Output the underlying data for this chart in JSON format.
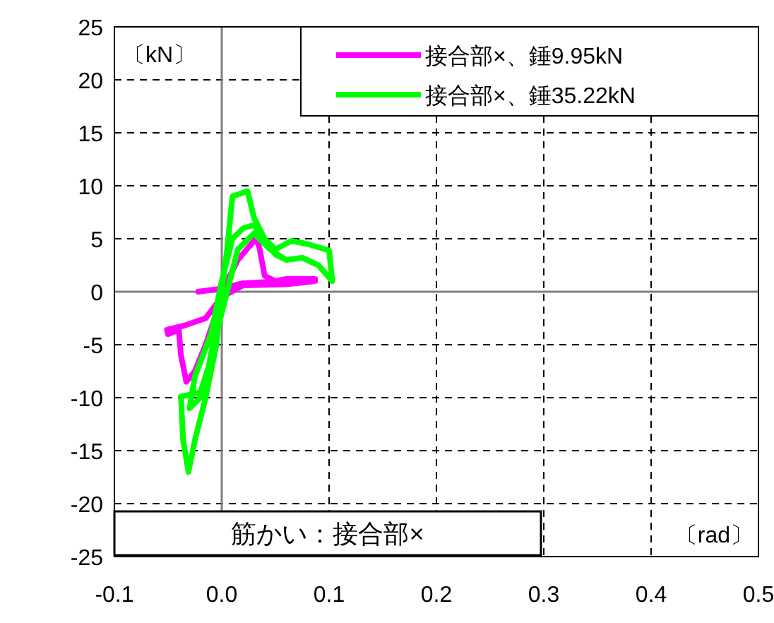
{
  "chart_data": {
    "type": "line",
    "xlabel": "〔rad〕",
    "ylabel": "〔kN〕",
    "annotations": [
      "筋かい：接合部×"
    ],
    "xlim": [
      -0.1,
      0.5
    ],
    "xticks": [
      -0.1,
      {
        "value": 0,
        "label": "0.0"
      },
      0.1,
      0.2,
      0.3,
      0.4,
      0.5
    ],
    "ylim": [
      -25,
      25
    ],
    "yticks": [
      -25,
      -20,
      -15,
      -10,
      -5,
      0,
      5,
      10,
      15,
      20,
      25
    ],
    "grid": true,
    "legend": "top right",
    "line_style": "solid",
    "marker": "none",
    "series": [
      {
        "name": "接合部×、錘9.95kN",
        "color": "#ff00ff",
        "x": [
          -0.022,
          0.0,
          0.02,
          0.06,
          0.087,
          0.06,
          0.02,
          0.0,
          -0.015,
          -0.035,
          -0.051,
          -0.05,
          -0.04,
          -0.038,
          -0.033,
          -0.025,
          -0.015,
          -0.005,
          0.005,
          0.015,
          0.025,
          0.032,
          0.035,
          0.04,
          0.05,
          0.06,
          0.087
        ],
        "values": [
          0,
          0.3,
          0.8,
          1.0,
          1.0,
          0.7,
          0.6,
          -0.5,
          -2.5,
          -3.2,
          -3.6,
          -4.0,
          -3.6,
          -6,
          -8.5,
          -7.5,
          -5,
          -2,
          1,
          3,
          4.2,
          5.0,
          4.2,
          1.5,
          1.0,
          1.2,
          1.2
        ]
      },
      {
        "name": "接合部×、錘35.22kN",
        "color": "#00ff00",
        "x": [
          0,
          -0.005,
          -0.012,
          -0.02,
          -0.038,
          -0.036,
          -0.031,
          -0.025,
          -0.015,
          -0.005,
          0.0,
          0.005,
          0.01,
          0.024,
          0.03,
          0.04,
          0.05,
          0.065,
          0.08,
          0.1,
          0.103,
          0.09,
          0.075,
          0.06,
          0.045,
          0.03,
          0.015,
          0.005,
          -0.005,
          -0.012,
          -0.02,
          -0.03,
          -0.025,
          -0.01,
          0.0,
          0.01,
          0.02,
          0.03,
          0.04,
          0.05,
          0.06
        ],
        "values": [
          0,
          -3,
          -7,
          -9.5,
          -9.9,
          -14,
          -17,
          -14,
          -10,
          -5,
          0,
          4,
          9.0,
          9.5,
          7,
          5,
          4,
          4.8,
          4.5,
          3.9,
          1.0,
          2.5,
          3.2,
          3.0,
          4,
          5.5,
          4,
          0,
          -4,
          -8,
          -10,
          -11,
          -8,
          -4,
          1,
          5,
          6,
          6.3,
          5,
          3.5,
          3.0
        ]
      }
    ]
  }
}
